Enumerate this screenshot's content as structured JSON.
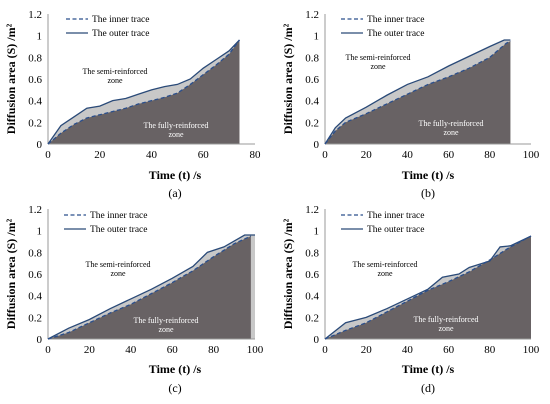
{
  "chart_data": [
    {
      "type": "area",
      "panel_label": "(a)",
      "xlabel": "Time (t) /s",
      "ylabel": "Diffusion area (S) /m²",
      "xlim": [
        0,
        80
      ],
      "ylim": [
        0,
        1.2
      ],
      "xticks": [
        "0",
        "20",
        "40",
        "60",
        "80"
      ],
      "yticks": [
        "0",
        "0.2",
        "0.4",
        "0.6",
        "0.8",
        "1",
        "1.2"
      ],
      "legend": [
        "The inner trace",
        "The outer trace"
      ],
      "zone_semi": [
        "The semi-reinforced",
        "zone"
      ],
      "zone_full": [
        "The fully-reinforced",
        "zone"
      ],
      "series": [
        {
          "name": "The inner trace",
          "style": "dashed",
          "x": [
            0,
            5,
            10,
            15,
            20,
            25,
            30,
            35,
            40,
            45,
            50,
            55,
            60,
            65,
            70,
            74
          ],
          "y": [
            0,
            0.1,
            0.18,
            0.24,
            0.27,
            0.3,
            0.33,
            0.37,
            0.4,
            0.43,
            0.47,
            0.55,
            0.64,
            0.73,
            0.83,
            0.96
          ]
        },
        {
          "name": "The outer trace",
          "style": "solid",
          "x": [
            0,
            5,
            10,
            15,
            20,
            25,
            30,
            35,
            40,
            45,
            50,
            55,
            60,
            65,
            70,
            74
          ],
          "y": [
            0,
            0.17,
            0.25,
            0.33,
            0.35,
            0.4,
            0.42,
            0.46,
            0.5,
            0.53,
            0.55,
            0.6,
            0.7,
            0.78,
            0.86,
            0.96
          ]
        }
      ]
    },
    {
      "type": "area",
      "panel_label": "(b)",
      "xlabel": "Time (t) /s",
      "ylabel": "Diffusion area (S) /m²",
      "xlim": [
        0,
        100
      ],
      "ylim": [
        0,
        1.2
      ],
      "xticks": [
        "0",
        "20",
        "40",
        "60",
        "80",
        "100"
      ],
      "yticks": [
        "0",
        "0.2",
        "0.4",
        "0.6",
        "0.8",
        "1",
        "1.2"
      ],
      "legend": [
        "The inner trace",
        "The outer trace"
      ],
      "zone_semi": [
        "The semi-reinforced",
        "zone"
      ],
      "zone_full": [
        "The fully-reinforced",
        "zone"
      ],
      "series": [
        {
          "name": "The inner trace",
          "style": "dashed",
          "x": [
            0,
            5,
            10,
            20,
            30,
            40,
            50,
            60,
            70,
            80,
            88,
            90
          ],
          "y": [
            0,
            0.12,
            0.2,
            0.28,
            0.37,
            0.46,
            0.55,
            0.62,
            0.7,
            0.8,
            0.93,
            0.95
          ]
        },
        {
          "name": "The outer trace",
          "style": "solid",
          "x": [
            0,
            5,
            10,
            20,
            30,
            40,
            50,
            60,
            70,
            80,
            87,
            90
          ],
          "y": [
            0,
            0.15,
            0.24,
            0.34,
            0.45,
            0.55,
            0.62,
            0.72,
            0.81,
            0.9,
            0.96,
            0.96
          ]
        }
      ]
    },
    {
      "type": "area",
      "panel_label": "(c)",
      "xlabel": "Time (t) /s",
      "ylabel": "Diffusion area (S) /m²",
      "xlim": [
        0,
        100
      ],
      "ylim": [
        0,
        1.2
      ],
      "xticks": [
        "0",
        "20",
        "40",
        "60",
        "80",
        "100"
      ],
      "yticks": [
        "0",
        "0.2",
        "0.4",
        "0.6",
        "0.8",
        "1",
        "1.2"
      ],
      "legend": [
        "The inner trace",
        "The outer trace"
      ],
      "zone_semi": [
        "The semi-reinforced",
        "zone"
      ],
      "zone_full": [
        "The fully-reinforced",
        "zone"
      ],
      "series": [
        {
          "name": "The inner trace",
          "style": "dashed",
          "x": [
            0,
            10,
            20,
            30,
            40,
            50,
            60,
            70,
            80,
            90,
            98
          ],
          "y": [
            0,
            0.06,
            0.15,
            0.24,
            0.32,
            0.42,
            0.52,
            0.63,
            0.76,
            0.88,
            0.95
          ]
        },
        {
          "name": "The outer trace",
          "style": "solid",
          "x": [
            0,
            10,
            20,
            30,
            40,
            50,
            60,
            70,
            77,
            85,
            95,
            100
          ],
          "y": [
            0,
            0.1,
            0.18,
            0.28,
            0.37,
            0.46,
            0.56,
            0.67,
            0.8,
            0.85,
            0.96,
            0.96
          ]
        }
      ]
    },
    {
      "type": "area",
      "panel_label": "(d)",
      "xlabel": "Time (t) /s",
      "ylabel": "Diffusion area (S) /m²",
      "xlim": [
        0,
        100
      ],
      "ylim": [
        0,
        1.2
      ],
      "xticks": [
        "0",
        "20",
        "40",
        "60",
        "80",
        "100"
      ],
      "yticks": [
        "0",
        "0.2",
        "0.4",
        "0.6",
        "0.8",
        "1",
        "1.2"
      ],
      "legend": [
        "The inner trace",
        "The outer trace"
      ],
      "zone_semi": [
        "The semi-reinforced",
        "zone"
      ],
      "zone_full": [
        "The fully-reinforced",
        "zone"
      ],
      "series": [
        {
          "name": "The inner trace",
          "style": "dashed",
          "x": [
            0,
            10,
            20,
            30,
            40,
            50,
            60,
            70,
            80,
            90,
            100
          ],
          "y": [
            0,
            0.08,
            0.15,
            0.25,
            0.35,
            0.45,
            0.53,
            0.62,
            0.73,
            0.85,
            0.95
          ]
        },
        {
          "name": "The outer trace",
          "style": "solid",
          "x": [
            0,
            10,
            20,
            30,
            40,
            50,
            57,
            65,
            70,
            80,
            85,
            90,
            100
          ],
          "y": [
            0,
            0.15,
            0.2,
            0.28,
            0.37,
            0.46,
            0.57,
            0.6,
            0.66,
            0.72,
            0.85,
            0.86,
            0.95
          ]
        }
      ]
    }
  ],
  "colors": {
    "dark_fill": "#686264",
    "light_fill": "#c8c8c8",
    "outer_line": "#2a4a78",
    "inner_line": "#2b4f8c"
  }
}
